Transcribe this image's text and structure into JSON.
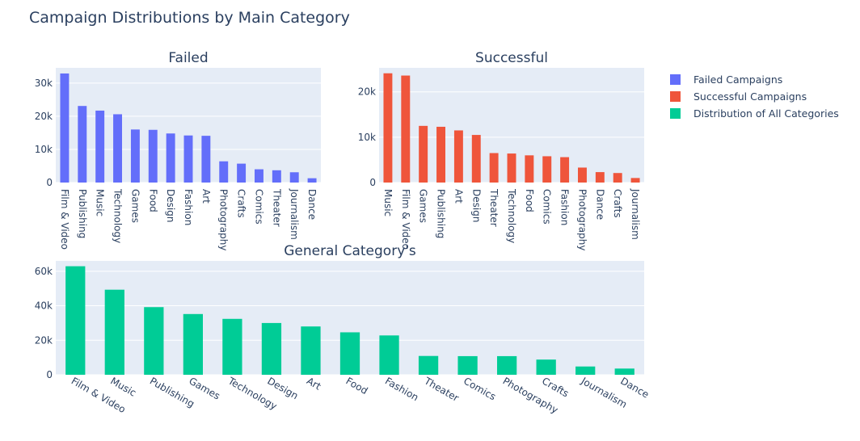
{
  "title": "Campaign Distributions by Main Category",
  "legend": [
    {
      "name": "Failed Campaigns",
      "color": "#636efa"
    },
    {
      "name": "Successful Campaigns",
      "color": "#ef553b"
    },
    {
      "name": "Distribution of All Categories",
      "color": "#00cc96"
    }
  ],
  "chart_data": [
    {
      "type": "bar",
      "title": "Failed",
      "series_name": "Failed Campaigns",
      "color": "#636efa",
      "categories": [
        "Film & Video",
        "Publishing",
        "Music",
        "Technology",
        "Games",
        "Food",
        "Design",
        "Fashion",
        "Art",
        "Photography",
        "Crafts",
        "Comics",
        "Theater",
        "Journalism",
        "Dance"
      ],
      "values": [
        32900,
        23100,
        21700,
        20600,
        16000,
        15900,
        14800,
        14200,
        14100,
        6400,
        5700,
        4000,
        3700,
        3100,
        1300
      ],
      "ylim": [
        0,
        34600
      ],
      "yticks": [
        0,
        10000,
        20000,
        30000
      ],
      "yticklabels": [
        "0",
        "10k",
        "20k",
        "30k"
      ],
      "xlabel": "",
      "ylabel": ""
    },
    {
      "type": "bar",
      "title": "Successful",
      "series_name": "Successful Campaigns",
      "color": "#ef553b",
      "categories": [
        "Music",
        "Film & Video",
        "Games",
        "Publishing",
        "Art",
        "Design",
        "Theater",
        "Technology",
        "Food",
        "Comics",
        "Fashion",
        "Photography",
        "Dance",
        "Crafts",
        "Journalism"
      ],
      "values": [
        24100,
        23600,
        12500,
        12300,
        11500,
        10500,
        6500,
        6400,
        6000,
        5800,
        5600,
        3300,
        2300,
        2100,
        1000
      ],
      "ylim": [
        0,
        25300
      ],
      "yticks": [
        0,
        10000,
        20000
      ],
      "yticklabels": [
        "0",
        "10k",
        "20k"
      ],
      "xlabel": "",
      "ylabel": ""
    },
    {
      "type": "bar",
      "title": "General Category's",
      "series_name": "Distribution of All Categories",
      "color": "#00cc96",
      "categories": [
        "Film & Video",
        "Music",
        "Publishing",
        "Games",
        "Technology",
        "Design",
        "Art",
        "Food",
        "Fashion",
        "Theater",
        "Comics",
        "Photography",
        "Crafts",
        "Journalism",
        "Dance"
      ],
      "values": [
        62900,
        49300,
        39200,
        35200,
        32400,
        30000,
        28000,
        24600,
        22800,
        10900,
        10800,
        10800,
        8800,
        4800,
        3600
      ],
      "ylim": [
        0,
        66000
      ],
      "yticks": [
        0,
        20000,
        40000,
        60000
      ],
      "yticklabels": [
        "0",
        "20k",
        "40k",
        "60k"
      ],
      "xlabel": "",
      "ylabel": ""
    }
  ]
}
